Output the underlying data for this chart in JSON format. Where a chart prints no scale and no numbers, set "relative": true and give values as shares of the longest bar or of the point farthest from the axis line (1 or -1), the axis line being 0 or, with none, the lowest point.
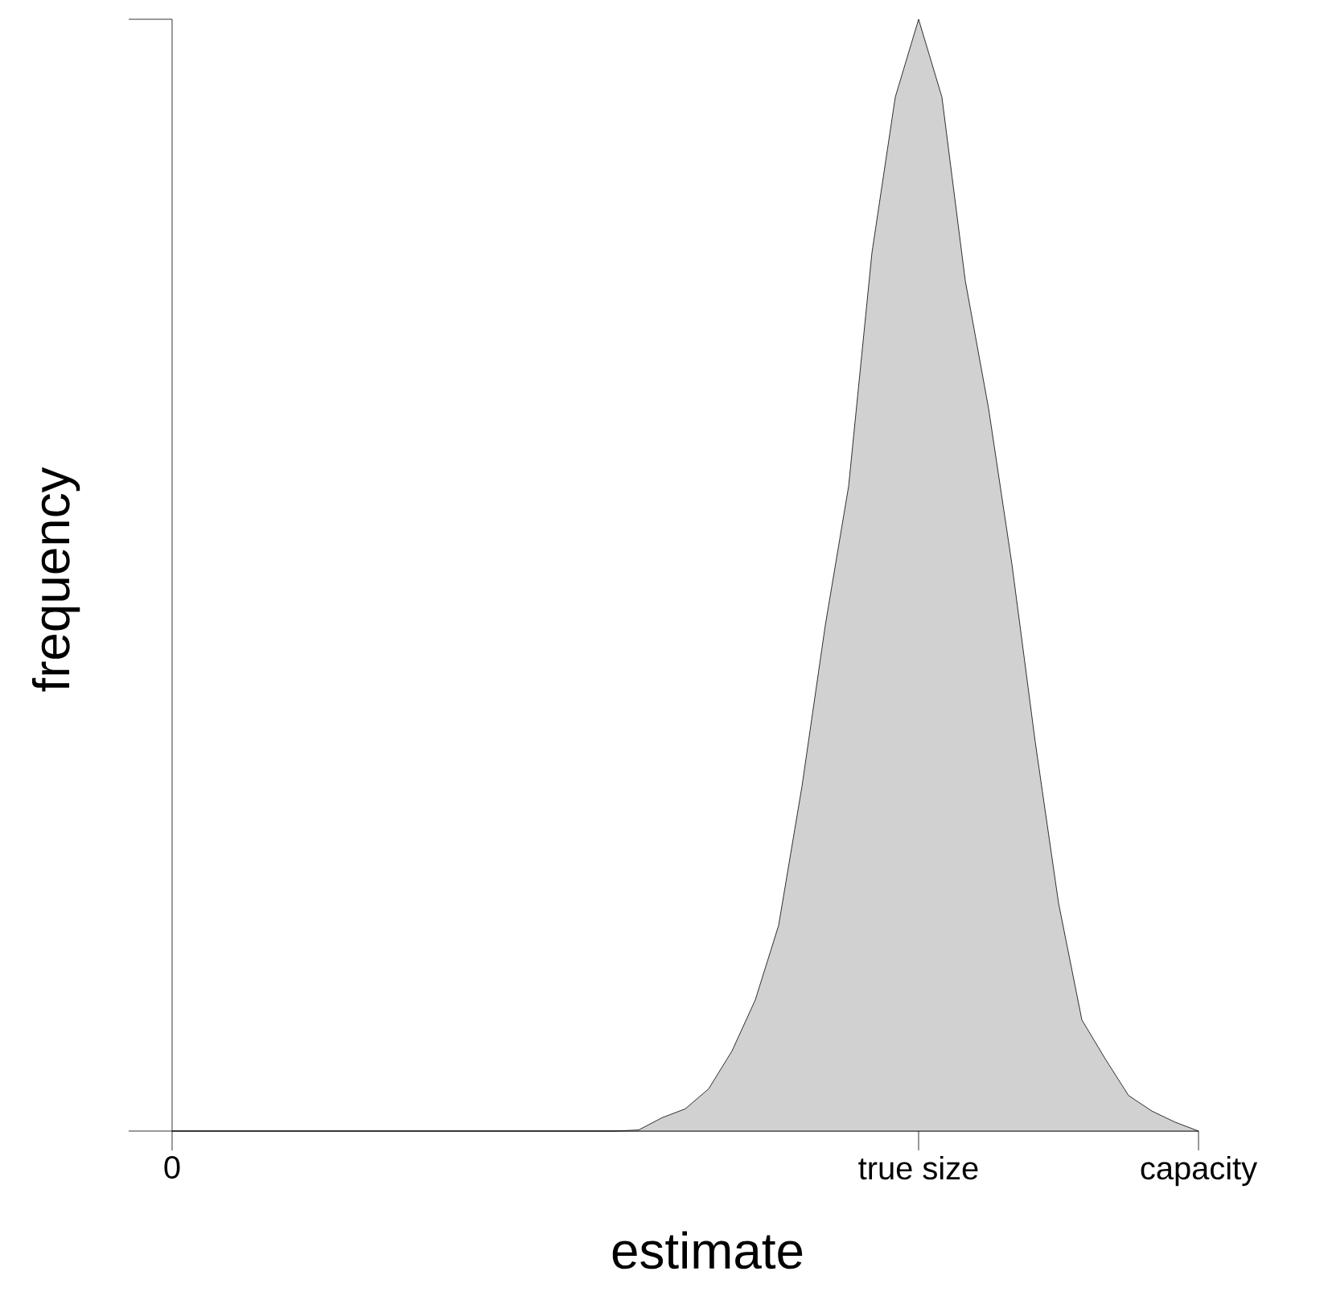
{
  "chart_data": {
    "type": "area",
    "relative": true,
    "xlabel": "estimate",
    "ylabel": "frequency",
    "color": "#000000",
    "categories": [
      "0",
      null,
      null,
      null,
      null,
      null,
      null,
      null,
      null,
      null,
      null,
      null,
      null,
      null,
      null,
      null,
      null,
      null,
      null,
      null,
      null,
      null,
      null,
      null,
      null,
      null,
      null,
      null,
      null,
      null,
      null,
      null,
      "true size",
      null,
      null,
      null,
      null,
      null,
      null,
      null,
      null,
      null,
      null,
      null,
      "capacity"
    ],
    "values": [
      0,
      0,
      0,
      0,
      0,
      0,
      0,
      0,
      0,
      0,
      0,
      0,
      0,
      0,
      0,
      0,
      0,
      0,
      0,
      0,
      0.001,
      0.012,
      0.02,
      0.038,
      0.072,
      0.118,
      0.185,
      0.31,
      0.455,
      0.58,
      0.79,
      0.93,
      1,
      0.93,
      0.765,
      0.65,
      0.51,
      0.35,
      0.205,
      0.1,
      0.065,
      0.032,
      0.018,
      0.008,
      0
    ]
  }
}
